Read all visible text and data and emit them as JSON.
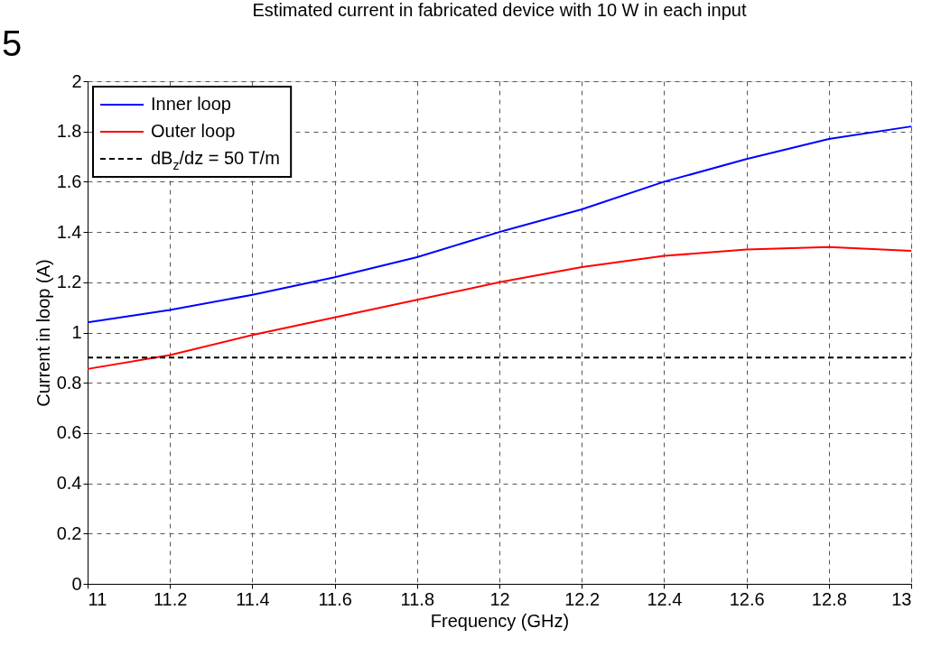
{
  "chart_data": {
    "type": "line",
    "title": "Estimated current in fabricated device with 10 W in each input",
    "xlabel": "Frequency (GHz)",
    "ylabel": "Current in loop (A)",
    "x": [
      11,
      11.2,
      11.4,
      11.6,
      11.8,
      12,
      12.2,
      12.4,
      12.6,
      12.8,
      13
    ],
    "series": [
      {
        "name": "Inner loop",
        "color": "#0000ff",
        "values": [
          1.04,
          1.09,
          1.15,
          1.22,
          1.3,
          1.4,
          1.49,
          1.6,
          1.69,
          1.77,
          1.82
        ]
      },
      {
        "name": "Outer loop",
        "color": "#ff0000",
        "values": [
          0.855,
          0.91,
          0.99,
          1.06,
          1.13,
          1.2,
          1.26,
          1.305,
          1.33,
          1.34,
          1.325
        ]
      },
      {
        "name": "dB$_{z}$/dz = 50 T/m",
        "color": "#000000",
        "line_style": "dashed",
        "x": [
          11,
          13
        ],
        "values": [
          0.9,
          0.9
        ]
      }
    ],
    "xlim": [
      11,
      13
    ],
    "xticks": [
      11,
      11.2,
      11.4,
      11.6,
      11.8,
      12,
      12.2,
      12.4,
      12.6,
      12.8,
      13
    ],
    "ylim": [
      0,
      2
    ],
    "yticks": [
      0,
      0.2,
      0.4,
      0.6,
      0.8,
      1,
      1.2,
      1.4,
      1.6,
      1.8,
      2
    ],
    "grid": true,
    "legend": "top left",
    "line_style": "solid",
    "annotations": [
      "5"
    ]
  }
}
